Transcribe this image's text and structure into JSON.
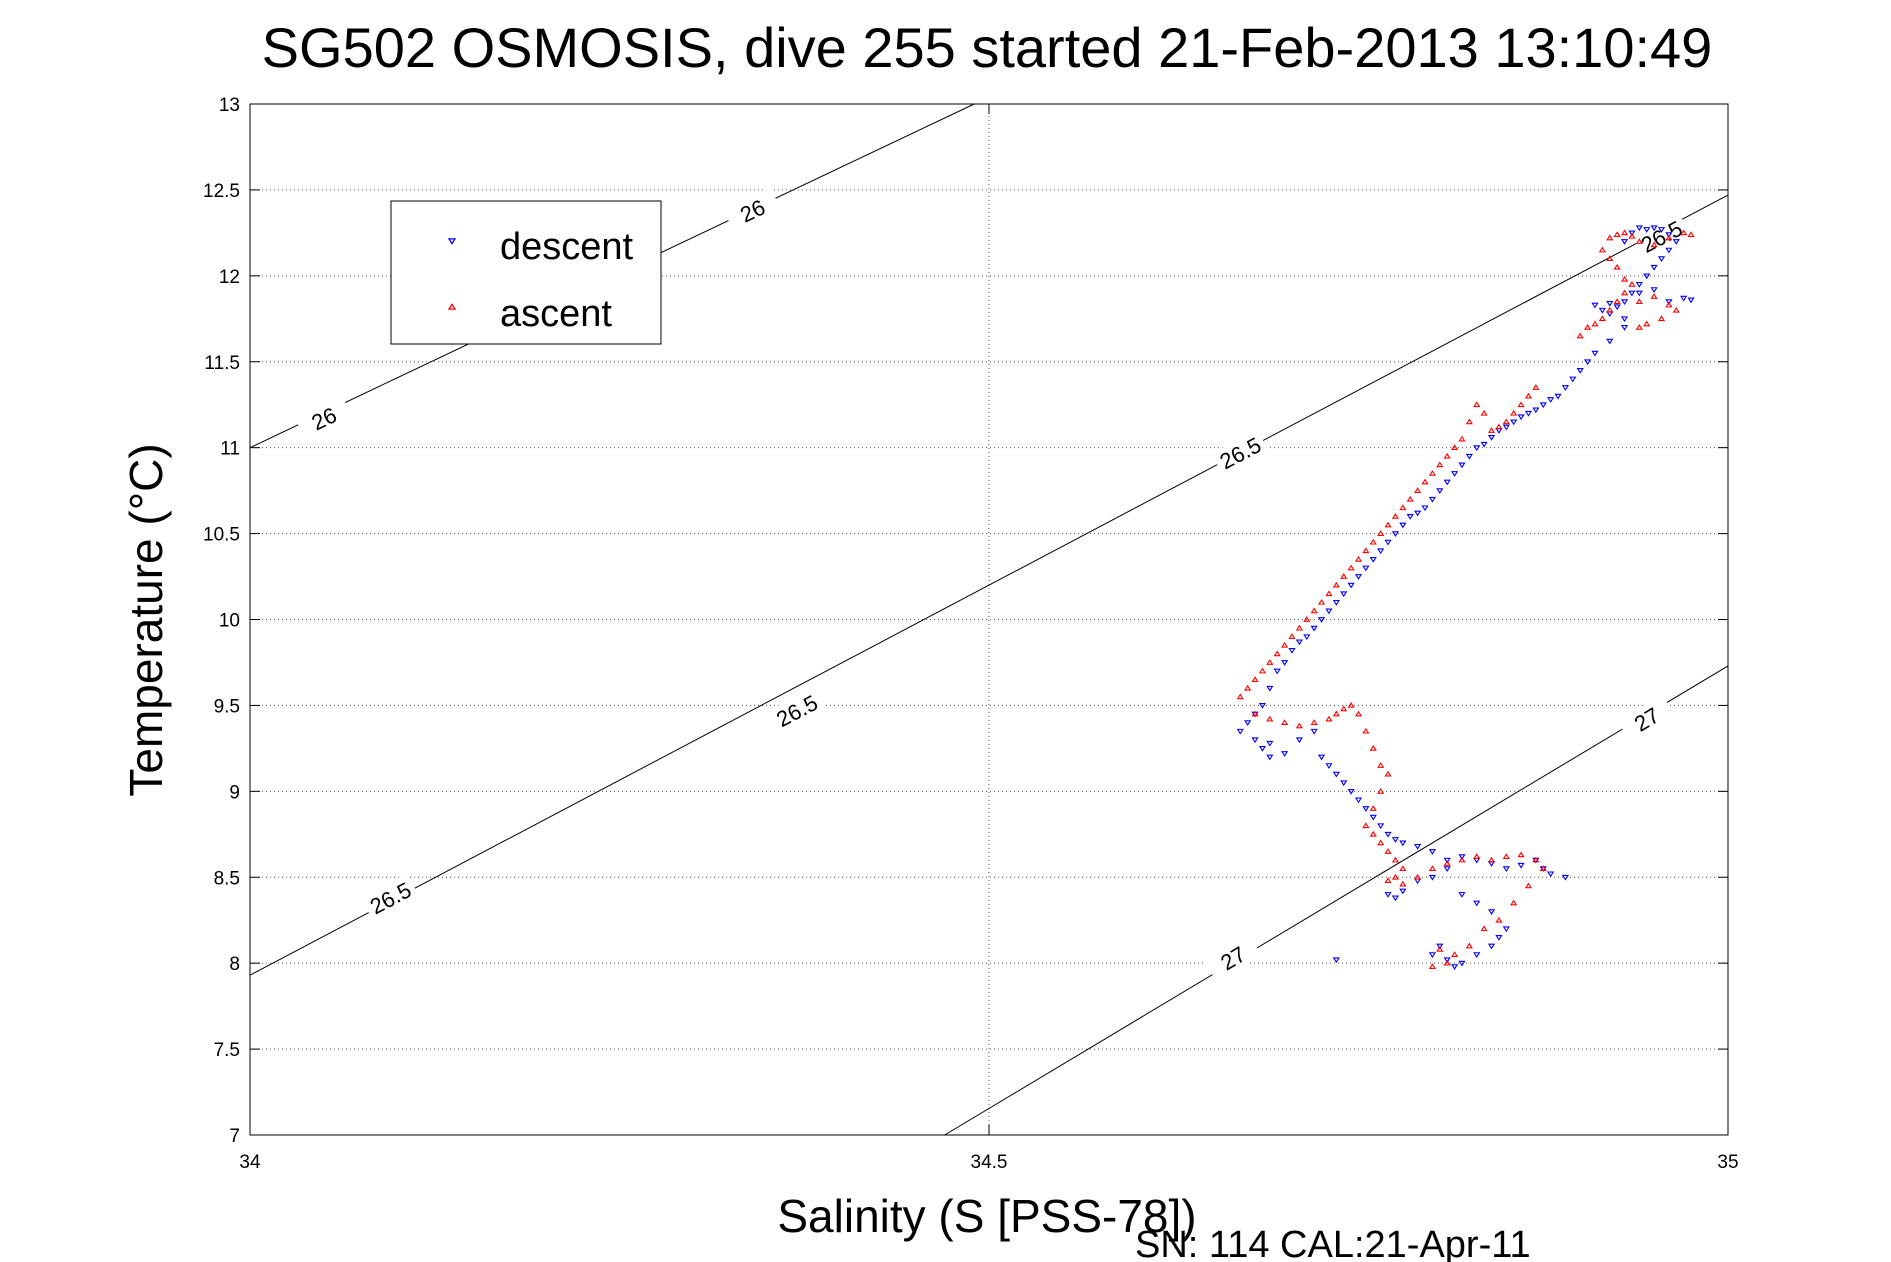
{
  "chart_data": {
    "type": "scatter",
    "title": "SG502 OSMOSIS, dive 255 started 21-Feb-2013 13:10:49",
    "xlabel": "Salinity (S [PSS-78])",
    "ylabel": "Temperature (°C)",
    "footer": "SN: 114  CAL:21-Apr-11",
    "xlim": [
      34,
      35
    ],
    "ylim": [
      7,
      13
    ],
    "x_ticks": [
      "34",
      "34.5",
      "35"
    ],
    "y_ticks": [
      "13",
      "12.5",
      "12",
      "11.5",
      "11",
      "10.5",
      "10",
      "9.5",
      "9",
      "8.5",
      "8",
      "7.5",
      "7"
    ],
    "grid": true,
    "legend_position": "top-left",
    "contours": [
      {
        "label": "26",
        "points": [
          [
            34,
            11.0
          ],
          [
            34.49,
            13.0
          ]
        ],
        "label_positions": [
          [
            34.05,
            11.17
          ],
          [
            34.34,
            12.38
          ]
        ]
      },
      {
        "label": "26.5",
        "points": [
          [
            34,
            7.93
          ],
          [
            35,
            12.47
          ]
        ],
        "label_positions": [
          [
            34.095,
            8.38
          ],
          [
            34.37,
            9.47
          ],
          [
            34.67,
            10.97
          ],
          [
            34.955,
            12.23
          ]
        ]
      },
      {
        "label": "27",
        "points": [
          [
            34.47,
            7.0
          ],
          [
            35,
            9.73
          ]
        ],
        "label_positions": [
          [
            34.665,
            8.03
          ],
          [
            34.945,
            9.42
          ]
        ]
      }
    ],
    "series": [
      {
        "name": "descent",
        "color": "#0000ff",
        "marker": "triangle-down",
        "points": [
          [
            34.93,
            12.2
          ],
          [
            34.935,
            12.25
          ],
          [
            34.94,
            12.28
          ],
          [
            34.945,
            12.27
          ],
          [
            34.95,
            12.28
          ],
          [
            34.955,
            12.27
          ],
          [
            34.96,
            12.24
          ],
          [
            34.965,
            12.2
          ],
          [
            34.96,
            12.15
          ],
          [
            34.955,
            12.1
          ],
          [
            34.95,
            12.05
          ],
          [
            34.945,
            12.0
          ],
          [
            34.94,
            11.95
          ],
          [
            34.935,
            11.9
          ],
          [
            34.93,
            11.85
          ],
          [
            34.925,
            11.82
          ],
          [
            34.92,
            11.84
          ],
          [
            34.915,
            11.8
          ],
          [
            34.91,
            11.83
          ],
          [
            34.92,
            11.78
          ],
          [
            34.93,
            11.75
          ],
          [
            34.94,
            11.9
          ],
          [
            34.95,
            11.92
          ],
          [
            34.96,
            11.85
          ],
          [
            34.97,
            11.87
          ],
          [
            34.975,
            11.86
          ],
          [
            34.93,
            11.7
          ],
          [
            34.92,
            11.62
          ],
          [
            34.91,
            11.55
          ],
          [
            34.905,
            11.5
          ],
          [
            34.9,
            11.45
          ],
          [
            34.895,
            11.4
          ],
          [
            34.89,
            11.35
          ],
          [
            34.885,
            11.3
          ],
          [
            34.88,
            11.28
          ],
          [
            34.875,
            11.25
          ],
          [
            34.87,
            11.22
          ],
          [
            34.865,
            11.2
          ],
          [
            34.86,
            11.18
          ],
          [
            34.855,
            11.15
          ],
          [
            34.85,
            11.12
          ],
          [
            34.845,
            11.1
          ],
          [
            34.84,
            11.06
          ],
          [
            34.835,
            11.02
          ],
          [
            34.83,
            11.0
          ],
          [
            34.825,
            10.95
          ],
          [
            34.82,
            10.9
          ],
          [
            34.815,
            10.85
          ],
          [
            34.81,
            10.8
          ],
          [
            34.805,
            10.75
          ],
          [
            34.8,
            10.7
          ],
          [
            34.795,
            10.65
          ],
          [
            34.79,
            10.62
          ],
          [
            34.785,
            10.6
          ],
          [
            34.78,
            10.55
          ],
          [
            34.775,
            10.5
          ],
          [
            34.77,
            10.45
          ],
          [
            34.765,
            10.4
          ],
          [
            34.76,
            10.35
          ],
          [
            34.755,
            10.3
          ],
          [
            34.75,
            10.25
          ],
          [
            34.745,
            10.2
          ],
          [
            34.74,
            10.15
          ],
          [
            34.735,
            10.1
          ],
          [
            34.73,
            10.05
          ],
          [
            34.725,
            10.0
          ],
          [
            34.72,
            9.95
          ],
          [
            34.715,
            9.9
          ],
          [
            34.71,
            9.87
          ],
          [
            34.705,
            9.82
          ],
          [
            34.7,
            9.75
          ],
          [
            34.695,
            9.7
          ],
          [
            34.69,
            9.6
          ],
          [
            34.685,
            9.5
          ],
          [
            34.68,
            9.45
          ],
          [
            34.675,
            9.4
          ],
          [
            34.67,
            9.35
          ],
          [
            34.68,
            9.3
          ],
          [
            34.69,
            9.28
          ],
          [
            34.685,
            9.25
          ],
          [
            34.69,
            9.2
          ],
          [
            34.7,
            9.22
          ],
          [
            34.71,
            9.3
          ],
          [
            34.72,
            9.35
          ],
          [
            34.725,
            9.2
          ],
          [
            34.73,
            9.15
          ],
          [
            34.735,
            9.1
          ],
          [
            34.74,
            9.05
          ],
          [
            34.745,
            9.0
          ],
          [
            34.75,
            8.95
          ],
          [
            34.755,
            8.9
          ],
          [
            34.76,
            8.85
          ],
          [
            34.765,
            8.8
          ],
          [
            34.77,
            8.75
          ],
          [
            34.775,
            8.72
          ],
          [
            34.78,
            8.7
          ],
          [
            34.79,
            8.68
          ],
          [
            34.8,
            8.65
          ],
          [
            34.81,
            8.6
          ],
          [
            34.82,
            8.62
          ],
          [
            34.83,
            8.6
          ],
          [
            34.84,
            8.58
          ],
          [
            34.85,
            8.55
          ],
          [
            34.86,
            8.57
          ],
          [
            34.87,
            8.6
          ],
          [
            34.875,
            8.55
          ],
          [
            34.88,
            8.52
          ],
          [
            34.89,
            8.5
          ],
          [
            34.77,
            8.4
          ],
          [
            34.775,
            8.38
          ],
          [
            34.78,
            8.42
          ],
          [
            34.79,
            8.48
          ],
          [
            34.8,
            8.5
          ],
          [
            34.81,
            8.55
          ],
          [
            34.82,
            8.4
          ],
          [
            34.83,
            8.35
          ],
          [
            34.84,
            8.3
          ],
          [
            34.85,
            8.2
          ],
          [
            34.845,
            8.15
          ],
          [
            34.84,
            8.1
          ],
          [
            34.83,
            8.05
          ],
          [
            34.82,
            8.0
          ],
          [
            34.815,
            7.98
          ],
          [
            34.81,
            8.02
          ],
          [
            34.805,
            8.1
          ],
          [
            34.8,
            8.05
          ],
          [
            34.735,
            8.02
          ]
        ]
      },
      {
        "name": "ascent",
        "color": "#ff0000",
        "marker": "triangle-up",
        "points": [
          [
            34.92,
            12.22
          ],
          [
            34.925,
            12.24
          ],
          [
            34.93,
            12.25
          ],
          [
            34.935,
            12.23
          ],
          [
            34.94,
            12.2
          ],
          [
            34.95,
            12.18
          ],
          [
            34.96,
            12.22
          ],
          [
            34.97,
            12.25
          ],
          [
            34.975,
            12.24
          ],
          [
            34.915,
            12.15
          ],
          [
            34.92,
            12.1
          ],
          [
            34.925,
            12.05
          ],
          [
            34.93,
            11.98
          ],
          [
            34.935,
            11.95
          ],
          [
            34.93,
            11.9
          ],
          [
            34.925,
            11.85
          ],
          [
            34.92,
            11.8
          ],
          [
            34.915,
            11.75
          ],
          [
            34.91,
            11.72
          ],
          [
            34.905,
            11.7
          ],
          [
            34.9,
            11.65
          ],
          [
            34.94,
            11.85
          ],
          [
            34.95,
            11.88
          ],
          [
            34.96,
            11.83
          ],
          [
            34.965,
            11.8
          ],
          [
            34.955,
            11.75
          ],
          [
            34.945,
            11.72
          ],
          [
            34.94,
            11.7
          ],
          [
            34.87,
            11.35
          ],
          [
            34.865,
            11.3
          ],
          [
            34.86,
            11.25
          ],
          [
            34.855,
            11.2
          ],
          [
            34.85,
            11.15
          ],
          [
            34.845,
            11.12
          ],
          [
            34.84,
            11.1
          ],
          [
            34.835,
            11.2
          ],
          [
            34.83,
            11.25
          ],
          [
            34.825,
            11.15
          ],
          [
            34.82,
            11.05
          ],
          [
            34.815,
            11.0
          ],
          [
            34.81,
            10.95
          ],
          [
            34.805,
            10.9
          ],
          [
            34.8,
            10.85
          ],
          [
            34.795,
            10.8
          ],
          [
            34.79,
            10.75
          ],
          [
            34.785,
            10.7
          ],
          [
            34.78,
            10.65
          ],
          [
            34.775,
            10.6
          ],
          [
            34.77,
            10.55
          ],
          [
            34.765,
            10.5
          ],
          [
            34.76,
            10.45
          ],
          [
            34.755,
            10.4
          ],
          [
            34.75,
            10.35
          ],
          [
            34.745,
            10.3
          ],
          [
            34.74,
            10.25
          ],
          [
            34.735,
            10.2
          ],
          [
            34.73,
            10.15
          ],
          [
            34.725,
            10.1
          ],
          [
            34.72,
            10.05
          ],
          [
            34.715,
            10.0
          ],
          [
            34.71,
            9.95
          ],
          [
            34.705,
            9.9
          ],
          [
            34.7,
            9.85
          ],
          [
            34.695,
            9.8
          ],
          [
            34.69,
            9.75
          ],
          [
            34.685,
            9.7
          ],
          [
            34.68,
            9.65
          ],
          [
            34.675,
            9.6
          ],
          [
            34.67,
            9.55
          ],
          [
            34.68,
            9.45
          ],
          [
            34.69,
            9.42
          ],
          [
            34.7,
            9.4
          ],
          [
            34.71,
            9.38
          ],
          [
            34.72,
            9.4
          ],
          [
            34.73,
            9.42
          ],
          [
            34.735,
            9.45
          ],
          [
            34.74,
            9.48
          ],
          [
            34.745,
            9.5
          ],
          [
            34.75,
            9.45
          ],
          [
            34.755,
            9.35
          ],
          [
            34.76,
            9.25
          ],
          [
            34.765,
            9.15
          ],
          [
            34.77,
            9.1
          ],
          [
            34.765,
            9.0
          ],
          [
            34.76,
            8.9
          ],
          [
            34.755,
            8.8
          ],
          [
            34.76,
            8.75
          ],
          [
            34.765,
            8.7
          ],
          [
            34.77,
            8.65
          ],
          [
            34.775,
            8.6
          ],
          [
            34.78,
            8.55
          ],
          [
            34.775,
            8.5
          ],
          [
            34.77,
            8.48
          ],
          [
            34.78,
            8.46
          ],
          [
            34.79,
            8.5
          ],
          [
            34.8,
            8.55
          ],
          [
            34.81,
            8.58
          ],
          [
            34.82,
            8.6
          ],
          [
            34.83,
            8.62
          ],
          [
            34.84,
            8.6
          ],
          [
            34.85,
            8.62
          ],
          [
            34.86,
            8.63
          ],
          [
            34.87,
            8.6
          ],
          [
            34.875,
            8.55
          ],
          [
            34.865,
            8.45
          ],
          [
            34.855,
            8.35
          ],
          [
            34.845,
            8.25
          ],
          [
            34.835,
            8.2
          ],
          [
            34.825,
            8.1
          ],
          [
            34.815,
            8.05
          ],
          [
            34.81,
            8.0
          ],
          [
            34.8,
            7.98
          ],
          [
            34.805,
            8.08
          ]
        ]
      }
    ]
  }
}
